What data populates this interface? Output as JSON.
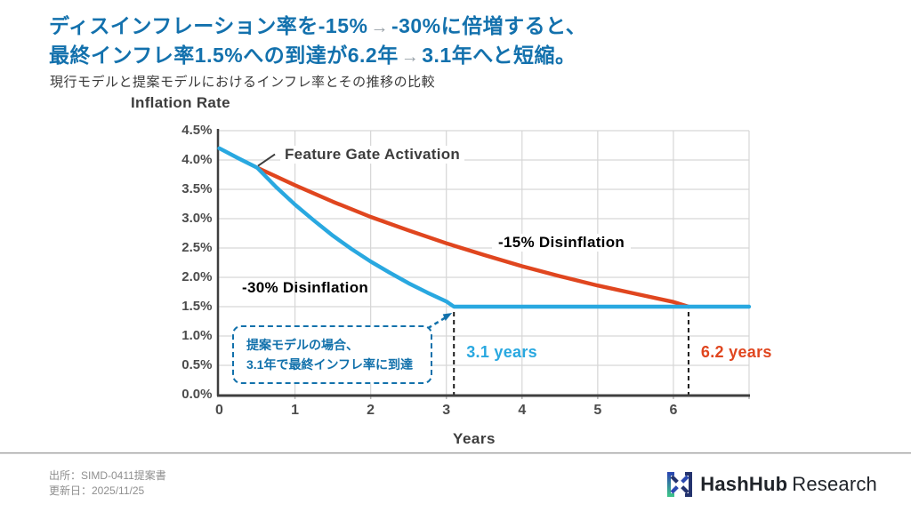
{
  "slide": {
    "title": {
      "line1": [
        "ディスインフレーション率を-15%",
        "→",
        "-30%に倍増すると、"
      ],
      "line2": [
        "最終インフレ率1.5%への到達が6.2年",
        "→",
        "3.1年へと短縮。"
      ],
      "subtitle": "現行モデルと提案モデルにおけるインフレ率とその推移の比較"
    },
    "footer": {
      "source": "出所：SIMD-0411提案書",
      "updated": "更新日：2025/11/25",
      "logo_bold": "HashHub",
      "logo_regular": "Research"
    }
  },
  "colors": {
    "accent_blue": "#1371ad",
    "line_blue": "#29a8e0",
    "line_red": "#e0461f",
    "callout_blue": "#1271ab",
    "grid": "#d6d6d6",
    "axis": "#3f3f3f",
    "dash_black": "#1c1c1c"
  },
  "chart_data": {
    "type": "line",
    "title": "Inflation Rate",
    "xlabel": "Years",
    "ylabel": "Inflation Rate",
    "xlim": [
      0,
      7
    ],
    "ylim": [
      0,
      4.5
    ],
    "grid": true,
    "x_ticks": [
      {
        "v": 0,
        "label": "0"
      },
      {
        "v": 1,
        "label": "1"
      },
      {
        "v": 2,
        "label": "2"
      },
      {
        "v": 3,
        "label": "3"
      },
      {
        "v": 4,
        "label": "4"
      },
      {
        "v": 5,
        "label": "5"
      },
      {
        "v": 6,
        "label": "6"
      }
    ],
    "y_ticks": [
      {
        "v": 4.5,
        "label": "4.5%"
      },
      {
        "v": 4.0,
        "label": "4.0%"
      },
      {
        "v": 3.5,
        "label": "3.5%"
      },
      {
        "v": 3.0,
        "label": "3.0%"
      },
      {
        "v": 2.5,
        "label": "2.5%"
      },
      {
        "v": 2.0,
        "label": "2.0%"
      },
      {
        "v": 1.5,
        "label": "1.5%"
      },
      {
        "v": 1.0,
        "label": "1.0%"
      },
      {
        "v": 0.5,
        "label": "0.5%"
      },
      {
        "v": 0.0,
        "label": "0.0%"
      }
    ],
    "series": [
      {
        "name": "-30% Disinflation",
        "color": "#29a8e0",
        "points": [
          [
            0,
            4.2
          ],
          [
            0.25,
            4.03
          ],
          [
            0.5,
            3.87
          ],
          [
            0.75,
            3.54
          ],
          [
            1,
            3.24
          ],
          [
            1.25,
            2.97
          ],
          [
            1.5,
            2.71
          ],
          [
            1.75,
            2.48
          ],
          [
            2,
            2.27
          ],
          [
            2.25,
            2.08
          ],
          [
            2.5,
            1.9
          ],
          [
            2.75,
            1.74
          ],
          [
            3,
            1.59
          ],
          [
            3.1,
            1.5
          ],
          [
            7,
            1.5
          ]
        ]
      },
      {
        "name": "-15% Disinflation",
        "color": "#e0461f",
        "points": [
          [
            0.5,
            3.87
          ],
          [
            1,
            3.57
          ],
          [
            1.5,
            3.29
          ],
          [
            2,
            3.03
          ],
          [
            2.5,
            2.8
          ],
          [
            3,
            2.58
          ],
          [
            3.5,
            2.38
          ],
          [
            4,
            2.19
          ],
          [
            4.5,
            2.02
          ],
          [
            5,
            1.86
          ],
          [
            5.5,
            1.72
          ],
          [
            6,
            1.58
          ],
          [
            6.2,
            1.5
          ]
        ]
      }
    ],
    "annotations": {
      "feature_gate": {
        "label": "Feature Gate Activation",
        "point": [
          0.5,
          3.87
        ]
      },
      "milestones": [
        {
          "x": 3.1,
          "label": "3.1 years",
          "color": "#29a8e0"
        },
        {
          "x": 6.2,
          "label": "6.2 years",
          "color": "#e0461f"
        }
      ],
      "callout": {
        "line1": "提案モデルの場合、",
        "line2": "3.1年で最終インフレ率に到達",
        "target": [
          3.1,
          1.5
        ]
      },
      "final_rate": 1.5
    }
  }
}
